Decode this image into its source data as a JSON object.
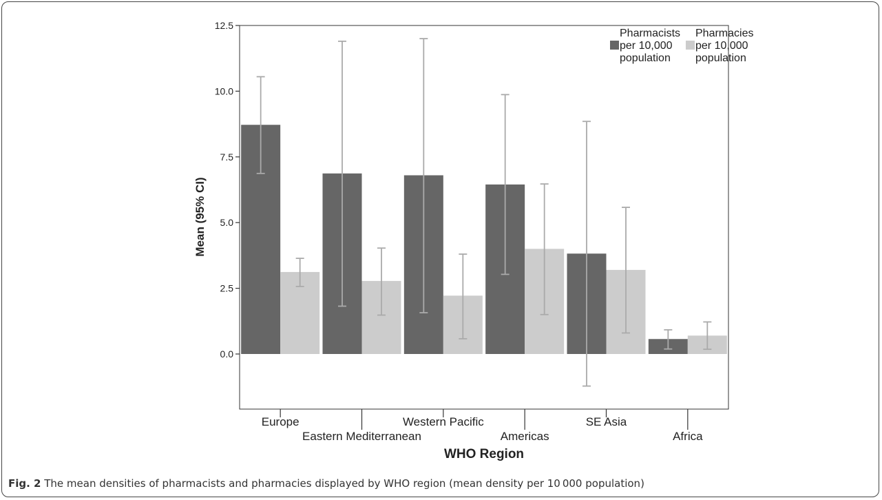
{
  "caption": {
    "label": "Fig. 2",
    "text": " The mean densities of pharmacists and pharmacies displayed by WHO region (mean density per 10 000 population)"
  },
  "chart_data": {
    "type": "bar",
    "xlabel": "WHO Region",
    "ylabel": "Mean (95% CI)",
    "ylim": [
      -2.0,
      12.5
    ],
    "yticks": [
      0.0,
      2.5,
      5.0,
      7.5,
      10.0,
      12.5
    ],
    "ytick_labels": [
      "0.0",
      "2.5",
      "5.0",
      "7.5",
      "10.0",
      "12.5"
    ],
    "categories": [
      "Europe",
      "Eastern Mediterranean",
      "Western Pacific",
      "Americas",
      "SE Asia",
      "Africa"
    ],
    "series": [
      {
        "name": "Pharmacists per 10,000 population",
        "legend_lines": [
          "Pharmacists",
          "per 10,000",
          "population"
        ],
        "color": "#666666",
        "values": [
          8.72,
          6.87,
          6.8,
          6.45,
          3.82,
          0.57
        ],
        "ci_low": [
          6.87,
          1.82,
          1.57,
          3.03,
          -1.22,
          0.19
        ],
        "ci_high": [
          10.55,
          11.9,
          12.0,
          9.87,
          8.85,
          0.92
        ]
      },
      {
        "name": "Pharmacies per 10,000 population",
        "legend_lines": [
          "Pharmacies",
          "per 10,000",
          "population"
        ],
        "color": "#cccccc",
        "values": [
          3.12,
          2.78,
          2.22,
          4.0,
          3.2,
          0.7
        ],
        "ci_low": [
          2.57,
          1.48,
          0.58,
          1.5,
          0.8,
          0.18
        ],
        "ci_high": [
          3.64,
          4.03,
          3.8,
          6.47,
          5.58,
          1.22
        ]
      }
    ],
    "legend_position": "top-right",
    "grid": false,
    "error_bar_color": "#aaaaaa"
  }
}
